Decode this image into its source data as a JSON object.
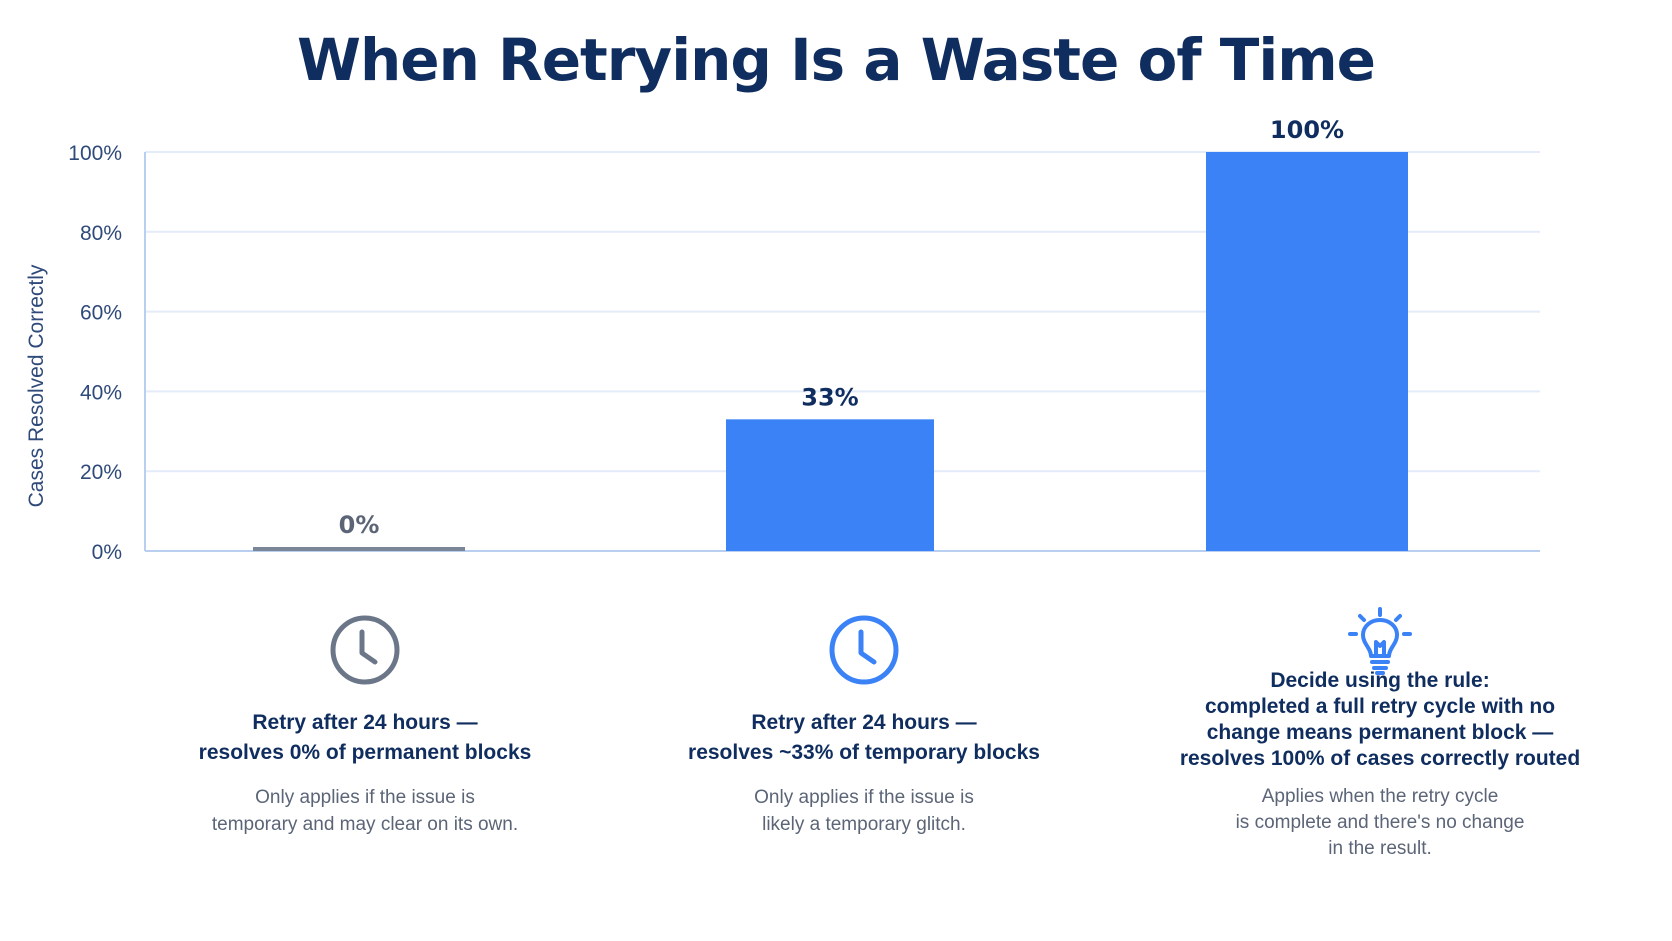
{
  "chart_data": {
    "type": "bar",
    "title": "When Retrying Is a Waste of Time",
    "ylabel": "Cases Resolved Correctly",
    "xlabel": "",
    "ylim": [
      0,
      100
    ],
    "yticks": [
      {
        "value": 0,
        "label": "0%"
      },
      {
        "value": 20,
        "label": "20%"
      },
      {
        "value": 40,
        "label": "40%"
      },
      {
        "value": 60,
        "label": "60%"
      },
      {
        "value": 80,
        "label": "80%"
      },
      {
        "value": 100,
        "label": "100%"
      }
    ],
    "grid": true,
    "categories": [
      "Retry after 24 hours — resolves 0% of permanent blocks",
      "Retry after 24 hours — resolves ~33% of temporary blocks",
      "Decide using the rule: completed a full retry cycle with no change means permanent block — resolves 100% of cases correctly routed"
    ],
    "values": [
      0,
      33,
      100
    ],
    "data_labels": [
      "0%",
      "33%",
      "100%"
    ],
    "colors": [
      "#7b8799",
      "#3b82f6",
      "#3b82f6"
    ]
  },
  "captions": [
    {
      "icon": "clock-icon",
      "icon_color": "#6b7789",
      "heading": "Retry after 24 hours —\nresolves 0% of permanent blocks",
      "note": "Only applies if the issue is\ntemporary and may clear on its own."
    },
    {
      "icon": "clock-icon",
      "icon_color": "#3b82f6",
      "heading": "Retry after 24 hours —\nresolves ~33% of temporary blocks",
      "note": "Only applies if the issue is\nlikely a temporary glitch."
    },
    {
      "icon": "lightbulb-icon",
      "icon_color": "#3b82f6",
      "heading": "Decide using the rule:\ncompleted a full retry cycle with no\nchange means permanent block —\nresolves 100% of cases correctly routed",
      "note": "Applies when the retry cycle\nis complete and there's no change\nin the result."
    }
  ],
  "colors": {
    "title": "#0f2d5e",
    "axis": "#2f4a7a",
    "grid": "#e3ecf8",
    "axis_line": "#b8cff0"
  }
}
